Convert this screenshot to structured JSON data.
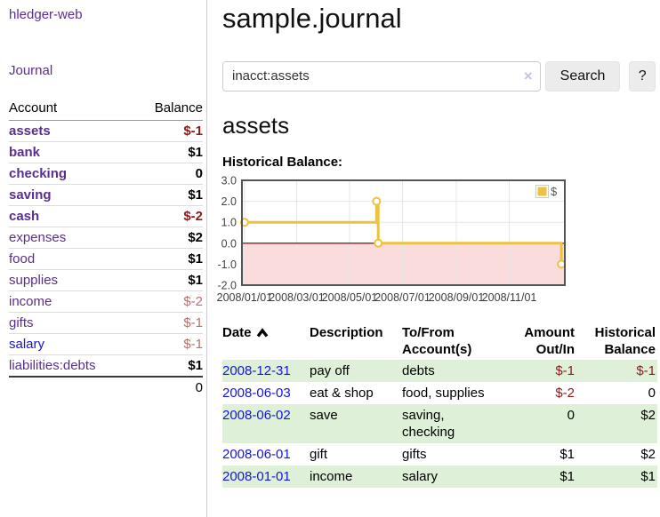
{
  "sidebar": {
    "app_title": "hledger-web",
    "nav": {
      "journal_label": "Journal"
    },
    "accounts_table": {
      "headers": {
        "account": "Account",
        "balance": "Balance"
      },
      "rows": [
        {
          "name": "assets",
          "depth": 1,
          "matched": true,
          "balance": "$-1",
          "balance_style": "neg-strong"
        },
        {
          "name": "bank",
          "depth": 2,
          "matched": true,
          "balance": "$1",
          "balance_style": "pos"
        },
        {
          "name": "checking",
          "depth": 3,
          "matched": true,
          "balance": "0",
          "balance_style": "pos"
        },
        {
          "name": "saving",
          "depth": 3,
          "matched": true,
          "balance": "$1",
          "balance_style": "pos"
        },
        {
          "name": "cash",
          "depth": 2,
          "matched": true,
          "balance": "$-2",
          "balance_style": "neg-strong"
        },
        {
          "name": "expenses",
          "depth": 1,
          "matched": false,
          "balance": "$2",
          "balance_style": "pos"
        },
        {
          "name": "food",
          "depth": 2,
          "matched": false,
          "balance": "$1",
          "balance_style": "pos"
        },
        {
          "name": "supplies",
          "depth": 2,
          "matched": false,
          "balance": "$1",
          "balance_style": "pos"
        },
        {
          "name": "income",
          "depth": 1,
          "matched": false,
          "balance": "$-2",
          "balance_style": "neg-muted"
        },
        {
          "name": "gifts",
          "depth": 2,
          "matched": false,
          "balance": "$-1",
          "balance_style": "neg-muted"
        },
        {
          "name": "salary",
          "depth": 2,
          "matched": false,
          "balance": "$-1",
          "balance_style": "neg-muted",
          "link_color": "blue"
        },
        {
          "name": "liabilities:debts",
          "depth": 1,
          "matched": false,
          "balance": "$1",
          "balance_style": "pos"
        }
      ],
      "total": "0"
    }
  },
  "main": {
    "page_title": "sample.journal",
    "search": {
      "value": "inacct:assets",
      "clear_icon": "×",
      "search_button": "Search",
      "help_button": "?"
    },
    "account_heading": "assets",
    "chart_label": "Historical Balance:"
  },
  "register": {
    "headers": {
      "date": "Date",
      "sort": {
        "column": "date",
        "direction": "ascending"
      },
      "description": "Description",
      "tofrom": [
        "To/From",
        "Account(s)"
      ],
      "amount": [
        "Amount",
        "Out/In"
      ],
      "balance": [
        "Historical",
        "Balance"
      ]
    },
    "rows": [
      {
        "date": "2008-12-31",
        "description": "pay off",
        "accounts": "debts",
        "amount": "$-1",
        "amount_negative": true,
        "balance": "$-1",
        "balance_negative": true
      },
      {
        "date": "2008-06-03",
        "description": "eat & shop",
        "accounts": "food, supplies",
        "amount": "$-2",
        "amount_negative": true,
        "balance": "0",
        "balance_negative": false
      },
      {
        "date": "2008-06-02",
        "description": "save",
        "accounts": [
          "saving,",
          "checking"
        ],
        "amount": "0",
        "amount_negative": false,
        "balance": "$2",
        "balance_negative": false
      },
      {
        "date": "2008-06-01",
        "description": "gift",
        "accounts": "gifts",
        "amount": "$1",
        "amount_negative": false,
        "balance": "$2",
        "balance_negative": false
      },
      {
        "date": "2008-01-01",
        "description": "income",
        "accounts": "salary",
        "amount": "$1",
        "amount_negative": false,
        "balance": "$1",
        "balance_negative": false
      }
    ]
  },
  "chart_data": {
    "type": "line",
    "title": "Historical Balance:",
    "series": [
      {
        "name": "$",
        "color": "#edc240",
        "style": "step",
        "data_by_date": [
          [
            "2008/01/01",
            1.0
          ],
          [
            "2008/06/01",
            2.0
          ],
          [
            "2008/06/02",
            2.0
          ],
          [
            "2008/06/03",
            0.0
          ],
          [
            "2008/12/31",
            -1.0
          ]
        ],
        "path_points_days": [
          [
            0,
            1
          ],
          [
            152,
            1
          ],
          [
            152,
            2
          ],
          [
            154,
            2
          ],
          [
            154,
            0
          ],
          [
            365,
            0
          ],
          [
            365,
            -1
          ]
        ],
        "marker_points_days": [
          [
            0,
            1
          ],
          [
            152,
            2
          ],
          [
            154,
            0
          ],
          [
            365,
            -1
          ]
        ]
      }
    ],
    "x_axis": {
      "range_days": [
        -3,
        369
      ],
      "ticks": [
        {
          "day": 0,
          "label": "2008/01/01"
        },
        {
          "day": 60,
          "label": "2008/03/01"
        },
        {
          "day": 121,
          "label": "2008/05/01"
        },
        {
          "day": 182,
          "label": "2008/07/01"
        },
        {
          "day": 244,
          "label": "2008/09/01"
        },
        {
          "day": 305,
          "label": "2008/11/01"
        }
      ]
    },
    "y_axis": {
      "range": [
        -2,
        3
      ],
      "ticks": [
        {
          "v": 3,
          "label": "3.0"
        },
        {
          "v": 2,
          "label": "2.0"
        },
        {
          "v": 1,
          "label": "1.0"
        },
        {
          "v": 0,
          "label": "0.0"
        },
        {
          "v": -1,
          "label": "-1.0"
        },
        {
          "v": -2,
          "label": "-2.0"
        }
      ]
    },
    "grid": true,
    "legend": {
      "label": "$",
      "position": "top-right"
    },
    "negative_region_fill": "#fbdcdc",
    "zero_line_color": "#8b2020",
    "plot_border_color": "#545454",
    "gridline_color": "#e6e6e6"
  },
  "colors": {
    "link_purple": "#5c2d91",
    "link_blue": "#1414dd",
    "negative_strong": "#8b1a1a",
    "negative_muted": "#bd6d6d",
    "row_shade_green": "#dff0d8",
    "chart_series_gold": "#edc240",
    "chart_negative_fill": "#fbdcdc",
    "chart_zero_line": "#8b2020",
    "chart_border": "#545454",
    "button_bg": "#ececec"
  }
}
